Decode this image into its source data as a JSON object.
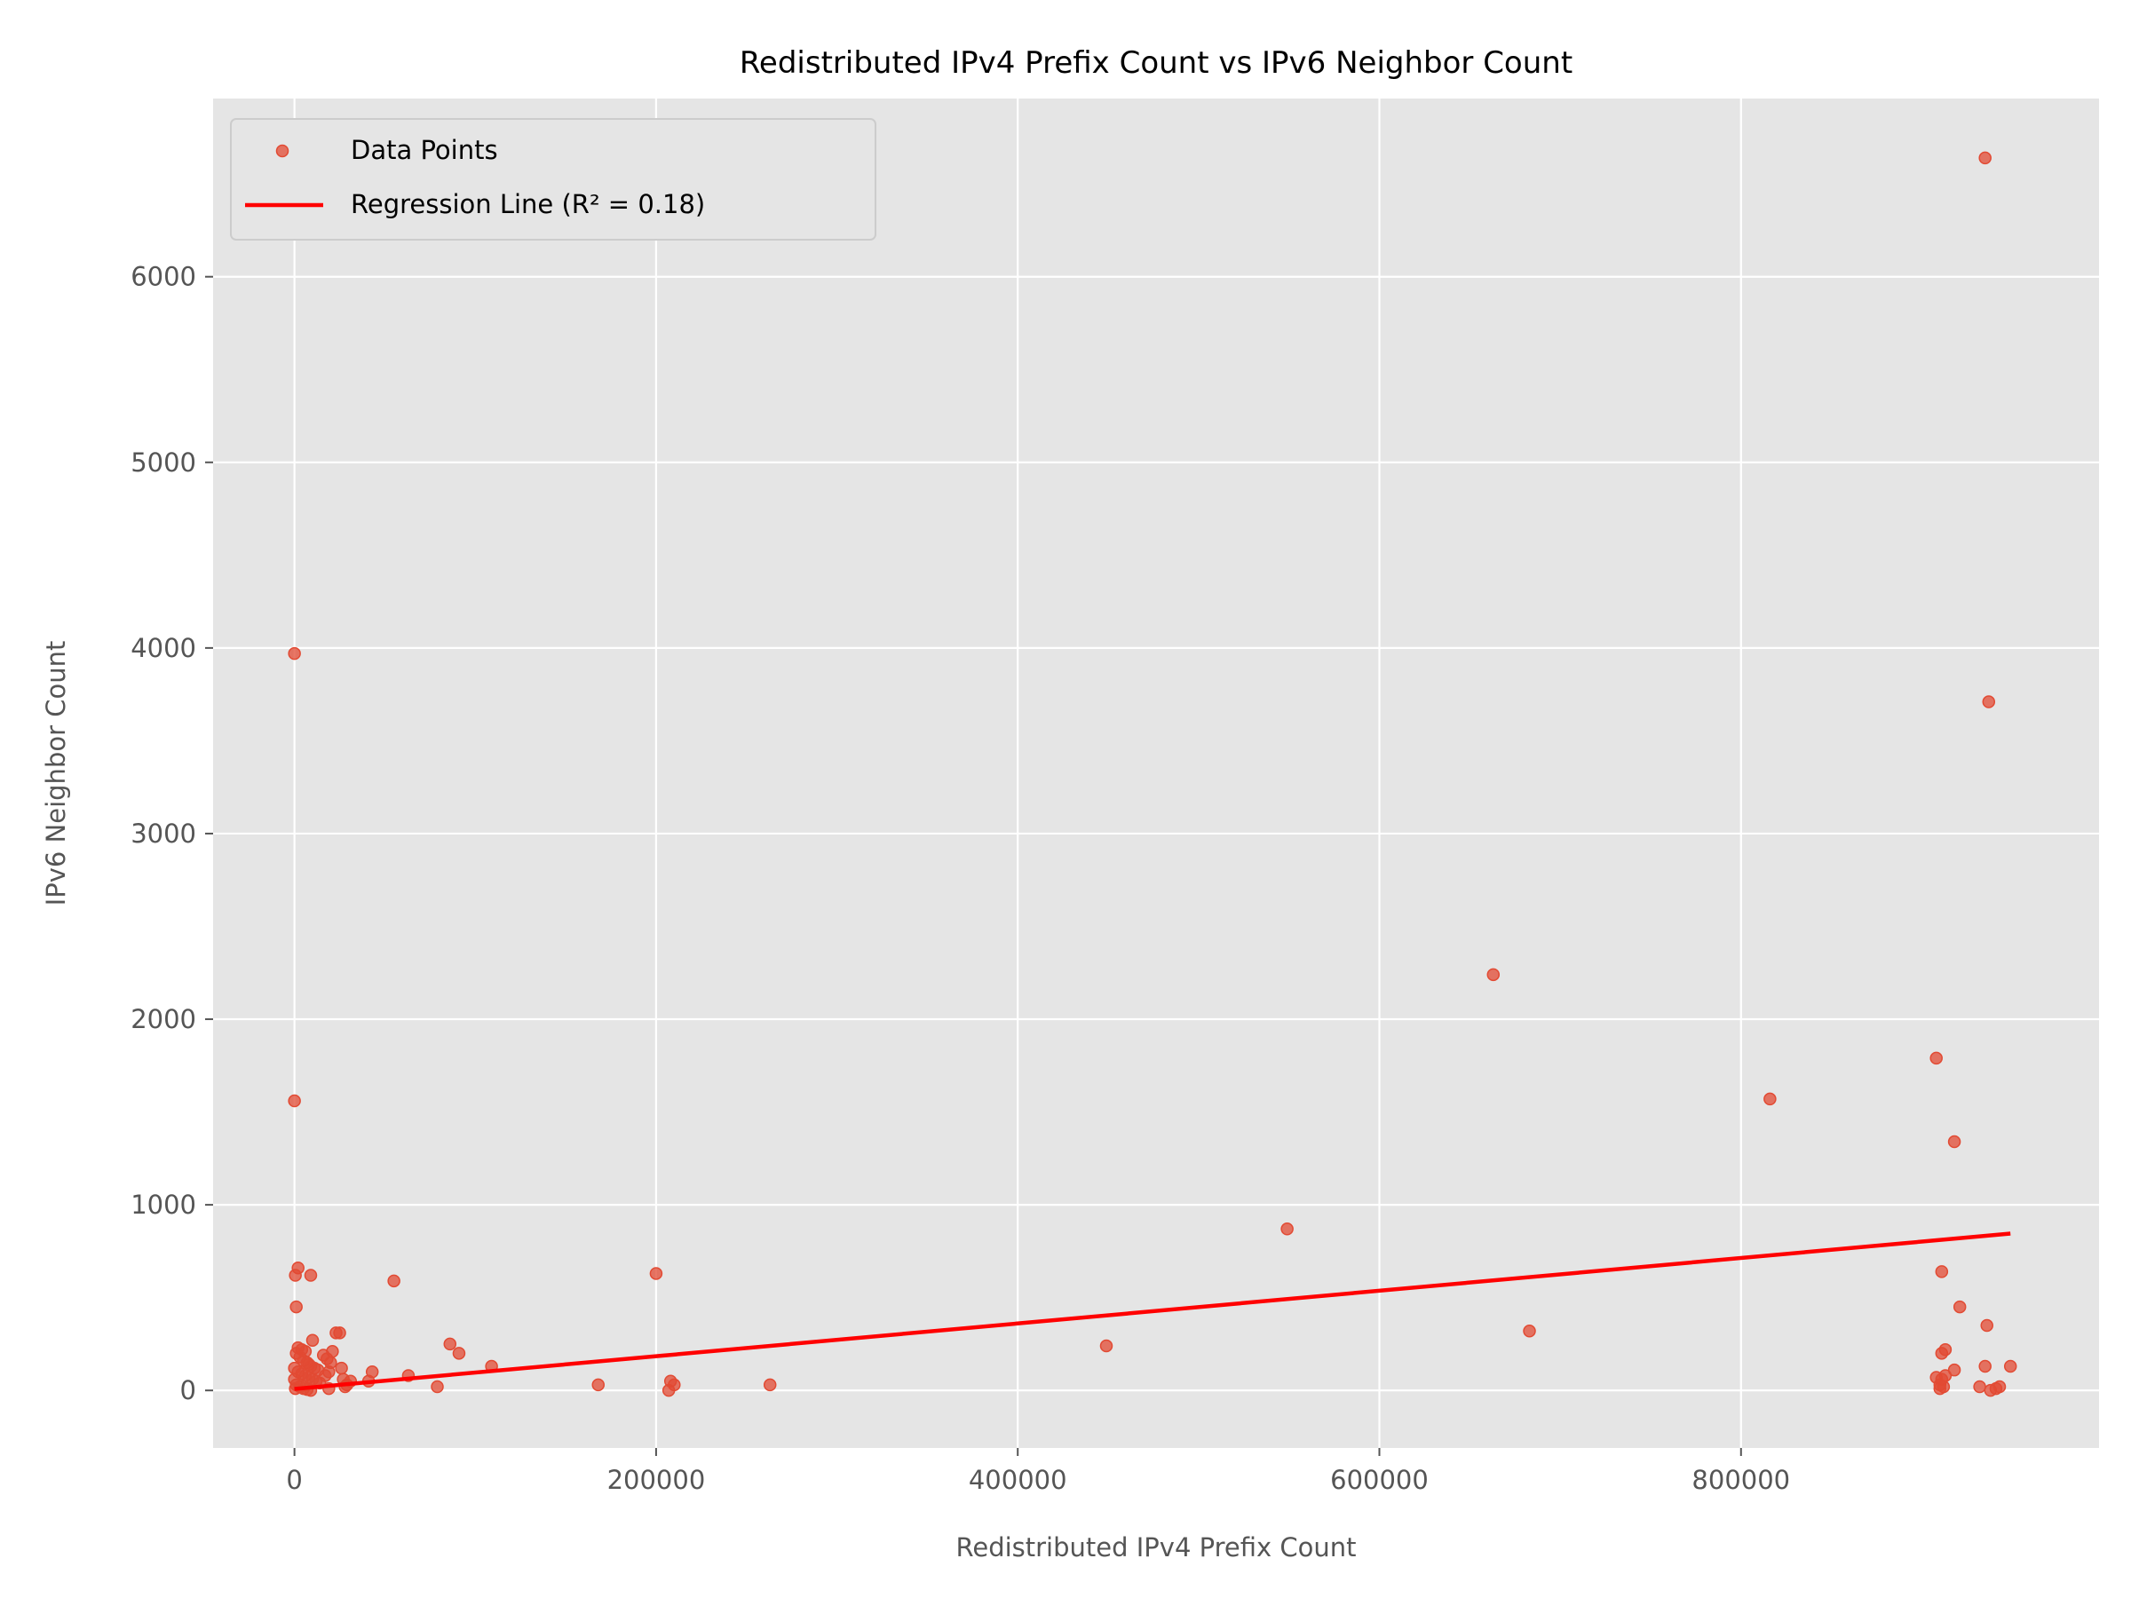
{
  "chart_data": {
    "type": "scatter",
    "title": "Redistributed IPv4 Prefix Count vs IPv6 Neighbor Count",
    "xlabel": "Redistributed IPv4 Prefix Count",
    "ylabel": "IPv6 Neighbor Count",
    "xlim": [
      -45000,
      998000
    ],
    "ylim": [
      -310,
      6960
    ],
    "xticks": [
      0,
      200000,
      400000,
      600000,
      800000
    ],
    "yticks": [
      0,
      1000,
      2000,
      3000,
      4000,
      5000,
      6000
    ],
    "grid": true,
    "legend_position": "top-left",
    "colors": {
      "points": "#E24A33",
      "regression": "#FF0000",
      "plot_background": "#E5E5E5",
      "grid": "#FFFFFF"
    },
    "series": [
      {
        "name": "Data Points",
        "kind": "scatter",
        "points": [
          [
            0,
            3970
          ],
          [
            0,
            1560
          ],
          [
            1000,
            450
          ],
          [
            2000,
            660
          ],
          [
            500,
            620
          ],
          [
            9000,
            620
          ],
          [
            10000,
            270
          ],
          [
            2000,
            230
          ],
          [
            4000,
            220
          ],
          [
            6000,
            210
          ],
          [
            1000,
            200
          ],
          [
            3000,
            180
          ],
          [
            5000,
            160
          ],
          [
            7000,
            150
          ],
          [
            8000,
            140
          ],
          [
            9000,
            130
          ],
          [
            11000,
            120
          ],
          [
            13000,
            110
          ],
          [
            2000,
            100
          ],
          [
            4000,
            90
          ],
          [
            6000,
            80
          ],
          [
            8000,
            70
          ],
          [
            10000,
            60
          ],
          [
            12000,
            50
          ],
          [
            14000,
            40
          ],
          [
            1000,
            30
          ],
          [
            3000,
            20
          ],
          [
            5000,
            10
          ],
          [
            7000,
            5
          ],
          [
            9000,
            0
          ],
          [
            0,
            120
          ],
          [
            0,
            60
          ],
          [
            500,
            10
          ],
          [
            16000,
            190
          ],
          [
            18000,
            170
          ],
          [
            20000,
            150
          ],
          [
            21000,
            210
          ],
          [
            23000,
            310
          ],
          [
            25000,
            310
          ],
          [
            19000,
            100
          ],
          [
            17000,
            80
          ],
          [
            26000,
            120
          ],
          [
            27000,
            60
          ],
          [
            29000,
            30
          ],
          [
            31000,
            50
          ],
          [
            41000,
            50
          ],
          [
            43000,
            100
          ],
          [
            19000,
            10
          ],
          [
            28000,
            20
          ],
          [
            55000,
            590
          ],
          [
            63000,
            80
          ],
          [
            79000,
            20
          ],
          [
            86000,
            250
          ],
          [
            91000,
            200
          ],
          [
            109000,
            130
          ],
          [
            168000,
            30
          ],
          [
            200000,
            630
          ],
          [
            207000,
            0
          ],
          [
            208000,
            50
          ],
          [
            210000,
            30
          ],
          [
            263000,
            30
          ],
          [
            449000,
            240
          ],
          [
            549000,
            870
          ],
          [
            663000,
            2240
          ],
          [
            683000,
            320
          ],
          [
            816000,
            1570
          ],
          [
            908000,
            1790
          ],
          [
            911000,
            640
          ],
          [
            911000,
            200
          ],
          [
            913000,
            220
          ],
          [
            918000,
            1340
          ],
          [
            921000,
            450
          ],
          [
            918000,
            110
          ],
          [
            913000,
            80
          ],
          [
            911000,
            60
          ],
          [
            908000,
            70
          ],
          [
            910000,
            30
          ],
          [
            912000,
            20
          ],
          [
            910000,
            10
          ],
          [
            932000,
            20
          ],
          [
            935000,
            130
          ],
          [
            936000,
            350
          ],
          [
            937000,
            3710
          ],
          [
            935000,
            6640
          ],
          [
            938000,
            0
          ],
          [
            941000,
            10
          ],
          [
            943000,
            20
          ],
          [
            949000,
            130
          ]
        ]
      },
      {
        "name": "Regression Line (R² = 0.18)",
        "kind": "line",
        "points": [
          [
            0,
            8
          ],
          [
            949000,
            845
          ]
        ]
      }
    ]
  }
}
